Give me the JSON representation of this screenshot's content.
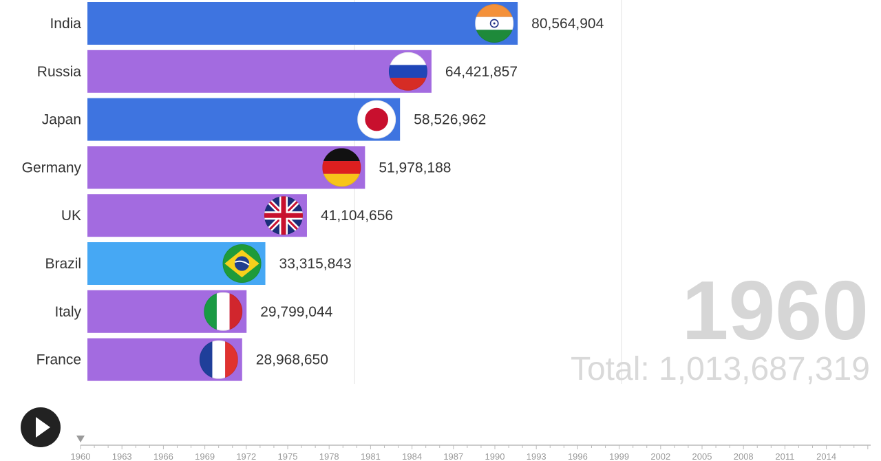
{
  "colors": {
    "blue": "#3e74e0",
    "purple": "#a36be0",
    "lightblue": "#46a8f4",
    "gridline": "#e6e6e6",
    "axis": "#bbbbbb",
    "play_button": "#222222"
  },
  "chart_data": {
    "type": "bar",
    "orientation": "horizontal",
    "categories": [
      "India",
      "Russia",
      "Japan",
      "Germany",
      "UK",
      "Brazil",
      "Italy",
      "France"
    ],
    "values": [
      80564904,
      64421857,
      58526962,
      51978188,
      41104656,
      33315843,
      29799044,
      28968650
    ],
    "value_labels": [
      "80,564,904",
      "64,421,857",
      "58,526,962",
      "51,978,188",
      "41,104,656",
      "33,315,843",
      "29,799,044",
      "28,968,650"
    ],
    "bar_colors": [
      "blue",
      "purple",
      "blue",
      "purple",
      "purple",
      "lightblue",
      "purple",
      "purple"
    ],
    "flag_icons": [
      "india-flag-icon",
      "russia-flag-icon",
      "japan-flag-icon",
      "germany-flag-icon",
      "uk-flag-icon",
      "brazil-flag-icon",
      "italy-flag-icon",
      "france-flag-icon"
    ],
    "gridlines": [
      50000000,
      100000000
    ],
    "xlim": [
      0,
      100000000
    ],
    "grid": true,
    "current_year": "1960",
    "total_label": "Total: 1,013,687,319"
  },
  "timeline": {
    "years": [
      "1960",
      "1963",
      "1966",
      "1969",
      "1972",
      "1975",
      "1978",
      "1981",
      "1984",
      "1987",
      "1990",
      "1993",
      "1996",
      "1999",
      "2002",
      "2005",
      "2008",
      "2011",
      "2014"
    ],
    "current": "1960",
    "play_icon": "play-icon"
  }
}
